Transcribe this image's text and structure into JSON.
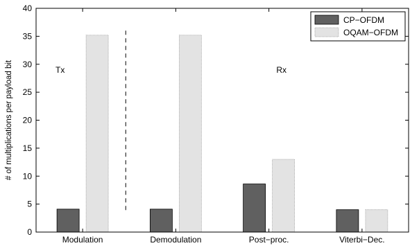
{
  "chart_data": {
    "type": "bar",
    "categories": [
      "Modulation",
      "Demodulation",
      "Post−proc.",
      "Viterbi−Dec."
    ],
    "series": [
      {
        "name": "CP−OFDM",
        "values": [
          4.1,
          4.1,
          8.6,
          4.0
        ],
        "color": "#606060"
      },
      {
        "name": "OQAM−OFDM",
        "values": [
          35.2,
          35.2,
          13.0,
          4.0
        ],
        "color": "#e3e3e3"
      }
    ],
    "xlabel": "",
    "ylabel": "# of multiplications per payload bit",
    "ylim": [
      0,
      40
    ],
    "yticks": [
      0,
      5,
      10,
      15,
      20,
      25,
      30,
      35,
      40
    ],
    "annotations": [
      "Tx",
      "Rx"
    ],
    "grid": false,
    "legend_position": "top-right",
    "divider": "dashed vertical line between Modulation and Demodulation"
  }
}
